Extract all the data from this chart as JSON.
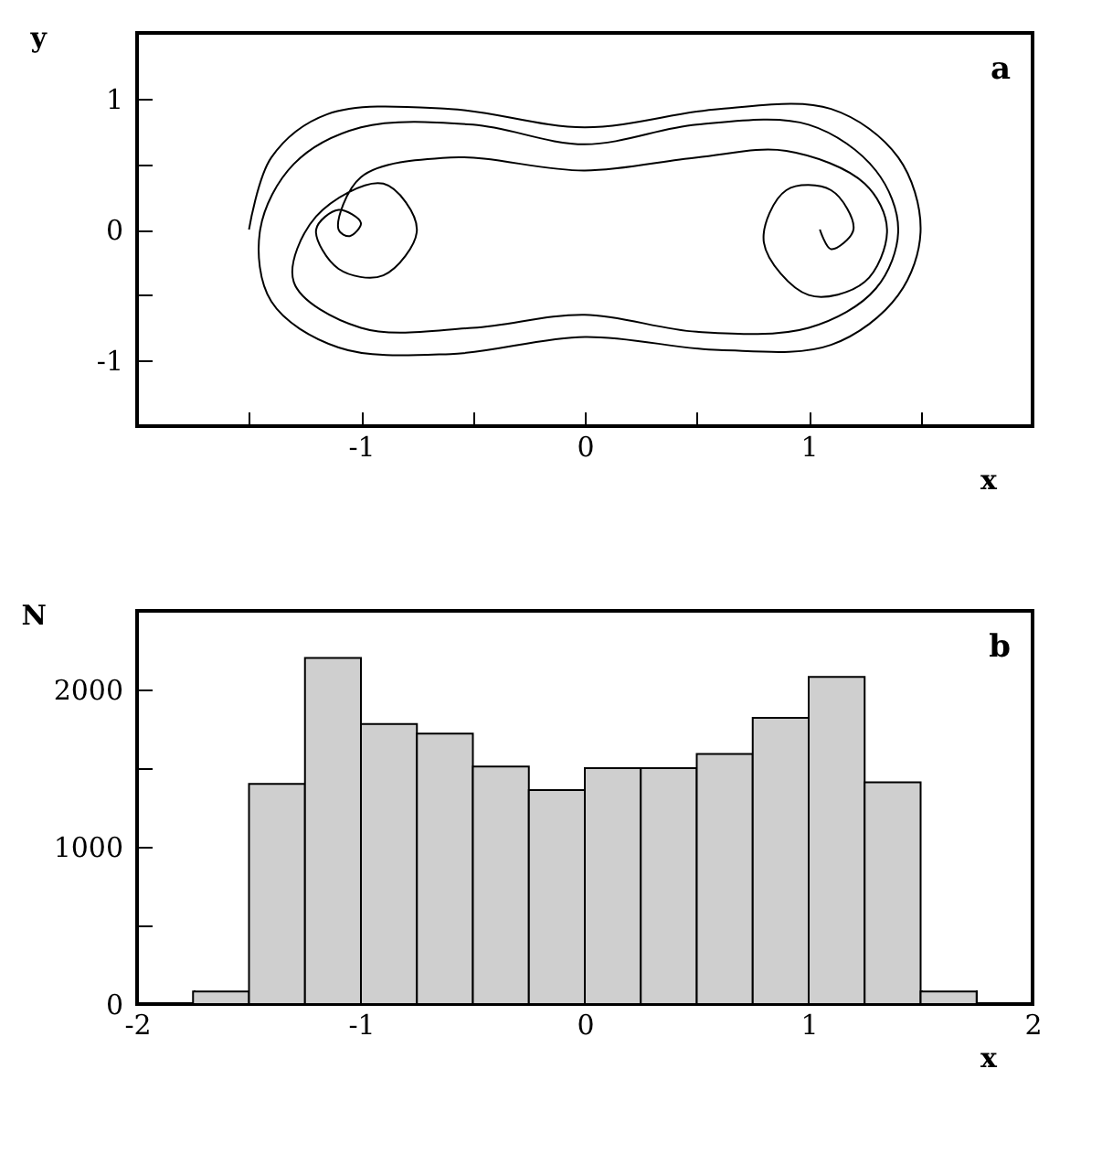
{
  "chart_data": [
    {
      "type": "line",
      "xlabel": "x",
      "ylabel": "y",
      "annotations": [
        "a"
      ],
      "grid": false,
      "marker": "none",
      "line_style": "solid",
      "xlim": [
        -2,
        2
      ],
      "ylim": [
        -1.5,
        1.5
      ],
      "xticks": [
        {
          "value": -1.5,
          "label": null
        },
        -1,
        {
          "value": -0.5,
          "label": null
        },
        0,
        {
          "value": 0.5,
          "label": null
        },
        1,
        {
          "value": 1.5,
          "label": null
        }
      ],
      "yticks": [
        {
          "value": -1.5,
          "label": null
        },
        -1,
        {
          "value": -0.5,
          "label": null
        },
        0,
        {
          "value": 0.5,
          "label": null
        },
        1,
        {
          "value": 1.5,
          "label": null
        }
      ],
      "series": [
        {
          "color": "#000000",
          "x": [
            -1.5,
            -1.4,
            -1.15,
            -0.6,
            0,
            0.6,
            1.1,
            1.4,
            1.5,
            1.4,
            1.1,
            0.6,
            0,
            -0.6,
            -1.1,
            -1.4,
            -1.45,
            -1.3,
            -1.0,
            -0.5,
            0,
            0.5,
            1.0,
            1.3,
            1.4,
            1.3,
            1.0,
            0.5,
            0,
            -0.5,
            -1.0,
            -1.3,
            -1.2,
            -0.9,
            -0.75,
            -0.9,
            -1.1,
            -1.2,
            -1.1,
            -1.0,
            -1.05,
            -1.1,
            -1.0,
            -0.6,
            0,
            0.5,
            0.9,
            1.25,
            1.35,
            1.25,
            1.0,
            0.8,
            0.9,
            1.1,
            1.2,
            1.1,
            1.05
          ],
          "values": [
            0,
            0.55,
            0.88,
            0.92,
            0.78,
            0.92,
            0.92,
            0.55,
            0,
            -0.5,
            -0.88,
            -0.92,
            -0.82,
            -0.95,
            -0.9,
            -0.55,
            0,
            0.5,
            0.78,
            0.8,
            0.65,
            0.8,
            0.8,
            0.45,
            0,
            -0.45,
            -0.75,
            -0.78,
            -0.65,
            -0.75,
            -0.75,
            -0.4,
            0.1,
            0.35,
            0,
            -0.35,
            -0.3,
            0,
            0.15,
            0.05,
            -0.05,
            0,
            0.4,
            0.55,
            0.45,
            0.55,
            0.6,
            0.35,
            0,
            -0.4,
            -0.5,
            -0.1,
            0.3,
            0.3,
            0,
            -0.15,
            0
          ]
        }
      ]
    },
    {
      "type": "histogram",
      "xlabel": "x",
      "ylabel": "N",
      "annotations": [
        "b"
      ],
      "grid": false,
      "color": "#cfcfcf",
      "bins": [
        -1.75,
        -1.5,
        -1.25,
        -1,
        -0.75,
        -0.5,
        -0.25,
        0,
        0.25,
        0.5,
        0.75,
        1,
        1.25,
        1.5,
        1.75
      ],
      "values": [
        80,
        1400,
        2200,
        1780,
        1720,
        1510,
        1360,
        1500,
        1500,
        1590,
        1820,
        2080,
        1410,
        80
      ],
      "xlim": [
        -2,
        2
      ],
      "ylim": [
        0,
        2500
      ],
      "xticks": [
        -2,
        {
          "value": -1.75,
          "label": null
        },
        {
          "value": -1.5,
          "label": null
        },
        {
          "value": -1.25,
          "label": null
        },
        -1,
        {
          "value": -0.75,
          "label": null
        },
        {
          "value": -0.5,
          "label": null
        },
        {
          "value": -0.25,
          "label": null
        },
        0,
        {
          "value": 0.25,
          "label": null
        },
        {
          "value": 0.5,
          "label": null
        },
        {
          "value": 0.75,
          "label": null
        },
        1,
        {
          "value": 1.25,
          "label": null
        },
        {
          "value": 1.5,
          "label": null
        },
        {
          "value": 1.75,
          "label": null
        },
        2
      ],
      "yticks": [
        0,
        {
          "value": 500,
          "label": null
        },
        1000,
        {
          "value": 1500,
          "label": null
        },
        2000,
        {
          "value": 2500,
          "label": null
        }
      ]
    }
  ]
}
